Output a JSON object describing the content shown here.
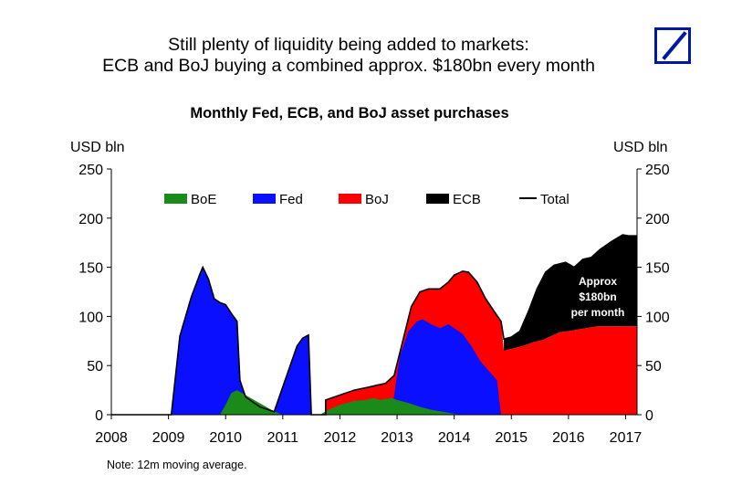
{
  "header": {
    "title_line1": "Still plenty of liquidity being added to markets:",
    "title_line2": "ECB and BoJ buying a combined approx. $180bn every month",
    "logo": "deutsche-bank-logo"
  },
  "chart_data": {
    "type": "area",
    "title": "Monthly Fed, ECB, and BoJ asset purchases",
    "ylabel_left": "USD bln",
    "ylabel_right": "USD bln",
    "xlim": [
      2008,
      2017.2
    ],
    "ylim": [
      0,
      250
    ],
    "yticks": [
      0,
      50,
      100,
      150,
      200,
      250
    ],
    "xticks": [
      "2008",
      "2009",
      "2010",
      "2011",
      "2012",
      "2013",
      "2014",
      "2015",
      "2016",
      "2017"
    ],
    "legend": [
      {
        "name": "BoE",
        "color": "#1a8a1a",
        "kind": "area"
      },
      {
        "name": "Fed",
        "color": "#0a10ff",
        "kind": "area"
      },
      {
        "name": "BoJ",
        "color": "#ff0000",
        "kind": "area"
      },
      {
        "name": "ECB",
        "color": "#000000",
        "kind": "area"
      },
      {
        "name": "Total",
        "color": "#000000",
        "kind": "line"
      }
    ],
    "annotation": [
      "Approx",
      "$180bn",
      "per month"
    ],
    "note": "Note: 12m moving average.",
    "grid": false,
    "series": [
      {
        "name": "Fed",
        "color": "#0a10ff",
        "points": [
          [
            2009.05,
            0
          ],
          [
            2009.2,
            80
          ],
          [
            2009.4,
            120
          ],
          [
            2009.55,
            143
          ],
          [
            2009.6,
            150
          ],
          [
            2009.7,
            138
          ],
          [
            2009.8,
            118
          ],
          [
            2009.9,
            114
          ],
          [
            2010.0,
            112
          ],
          [
            2010.1,
            103
          ],
          [
            2010.2,
            95
          ],
          [
            2010.25,
            35
          ],
          [
            2010.35,
            18
          ],
          [
            2010.5,
            12
          ],
          [
            2010.6,
            8
          ],
          [
            2010.75,
            5
          ],
          [
            2010.85,
            3
          ],
          [
            2010.95,
            20
          ],
          [
            2011.1,
            45
          ],
          [
            2011.25,
            70
          ],
          [
            2011.35,
            78
          ],
          [
            2011.45,
            81
          ],
          [
            2011.5,
            0
          ],
          [
            2012.9,
            0
          ],
          [
            2012.95,
            20
          ],
          [
            2013.05,
            60
          ],
          [
            2013.2,
            85
          ],
          [
            2013.35,
            95
          ],
          [
            2013.45,
            97
          ],
          [
            2013.6,
            92
          ],
          [
            2013.75,
            88
          ],
          [
            2013.9,
            92
          ],
          [
            2014.0,
            88
          ],
          [
            2014.15,
            82
          ],
          [
            2014.3,
            70
          ],
          [
            2014.45,
            55
          ],
          [
            2014.6,
            45
          ],
          [
            2014.75,
            35
          ],
          [
            2014.82,
            0
          ]
        ]
      },
      {
        "name": "BoE",
        "color": "#1a8a1a",
        "points": [
          [
            2009.9,
            0
          ],
          [
            2010.0,
            10
          ],
          [
            2010.1,
            22
          ],
          [
            2010.2,
            25
          ],
          [
            2010.35,
            20
          ],
          [
            2010.5,
            15
          ],
          [
            2010.65,
            10
          ],
          [
            2010.8,
            5
          ],
          [
            2010.95,
            1
          ],
          [
            2011.0,
            0
          ],
          [
            2011.65,
            0
          ],
          [
            2011.8,
            5
          ],
          [
            2012.0,
            10
          ],
          [
            2012.25,
            14
          ],
          [
            2012.45,
            15
          ],
          [
            2012.6,
            17
          ],
          [
            2012.7,
            15
          ],
          [
            2012.9,
            17
          ],
          [
            2013.0,
            15
          ],
          [
            2013.2,
            12
          ],
          [
            2013.4,
            8
          ],
          [
            2013.6,
            5
          ],
          [
            2013.8,
            3
          ],
          [
            2014.0,
            1
          ],
          [
            2014.1,
            0
          ]
        ]
      },
      {
        "name": "BoJ",
        "color": "#ff0000",
        "points": [
          [
            2011.75,
            0
          ],
          [
            2011.75,
            15
          ],
          [
            2012.0,
            20
          ],
          [
            2012.25,
            25
          ],
          [
            2012.5,
            28
          ],
          [
            2012.65,
            30
          ],
          [
            2012.8,
            32
          ],
          [
            2012.95,
            40
          ],
          [
            2013.1,
            75
          ],
          [
            2013.25,
            110
          ],
          [
            2013.4,
            125
          ],
          [
            2013.55,
            128
          ],
          [
            2013.75,
            128
          ],
          [
            2013.9,
            135
          ],
          [
            2014.0,
            142
          ],
          [
            2014.15,
            146
          ],
          [
            2014.25,
            145
          ],
          [
            2014.4,
            135
          ],
          [
            2014.55,
            118
          ],
          [
            2014.7,
            105
          ],
          [
            2014.82,
            95
          ],
          [
            2014.87,
            65
          ],
          [
            2015.0,
            67
          ],
          [
            2015.2,
            70
          ],
          [
            2015.4,
            74
          ],
          [
            2015.55,
            76
          ],
          [
            2015.7,
            80
          ],
          [
            2015.85,
            84
          ],
          [
            2016.0,
            85
          ],
          [
            2016.2,
            87
          ],
          [
            2016.5,
            90
          ],
          [
            2016.8,
            90
          ],
          [
            2017.2,
            90
          ],
          [
            2017.2,
            0
          ]
        ]
      },
      {
        "name": "Total",
        "color": "#000000",
        "points": [
          [
            2008.0,
            0
          ],
          [
            2009.05,
            0
          ],
          [
            2009.2,
            80
          ],
          [
            2009.4,
            120
          ],
          [
            2009.55,
            143
          ],
          [
            2009.6,
            150
          ],
          [
            2009.7,
            138
          ],
          [
            2009.8,
            118
          ],
          [
            2009.9,
            114
          ],
          [
            2010.0,
            112
          ],
          [
            2010.1,
            103
          ],
          [
            2010.2,
            95
          ],
          [
            2010.25,
            35
          ],
          [
            2010.35,
            18
          ],
          [
            2010.5,
            12
          ],
          [
            2010.6,
            8
          ],
          [
            2010.75,
            5
          ],
          [
            2010.85,
            3
          ],
          [
            2010.95,
            20
          ],
          [
            2011.1,
            45
          ],
          [
            2011.25,
            70
          ],
          [
            2011.35,
            78
          ],
          [
            2011.45,
            81
          ],
          [
            2011.5,
            0
          ],
          [
            2011.75,
            0
          ],
          [
            2011.75,
            15
          ],
          [
            2012.0,
            20
          ],
          [
            2012.25,
            25
          ],
          [
            2012.5,
            28
          ],
          [
            2012.65,
            30
          ],
          [
            2012.8,
            32
          ],
          [
            2012.95,
            40
          ],
          [
            2013.1,
            75
          ],
          [
            2013.25,
            110
          ],
          [
            2013.4,
            125
          ],
          [
            2013.55,
            128
          ],
          [
            2013.75,
            128
          ],
          [
            2013.9,
            135
          ],
          [
            2014.0,
            142
          ],
          [
            2014.15,
            146
          ],
          [
            2014.25,
            145
          ],
          [
            2014.4,
            135
          ],
          [
            2014.55,
            118
          ],
          [
            2014.7,
            105
          ],
          [
            2014.82,
            95
          ],
          [
            2014.87,
            77
          ],
          [
            2015.0,
            79
          ],
          [
            2015.15,
            85
          ],
          [
            2015.3,
            105
          ],
          [
            2015.45,
            128
          ],
          [
            2015.6,
            145
          ],
          [
            2015.75,
            152
          ],
          [
            2015.95,
            155
          ],
          [
            2016.1,
            150
          ],
          [
            2016.25,
            158
          ],
          [
            2016.4,
            160
          ],
          [
            2016.55,
            168
          ],
          [
            2016.75,
            176
          ],
          [
            2016.95,
            183
          ],
          [
            2017.05,
            182
          ],
          [
            2017.2,
            182
          ]
        ]
      }
    ]
  }
}
